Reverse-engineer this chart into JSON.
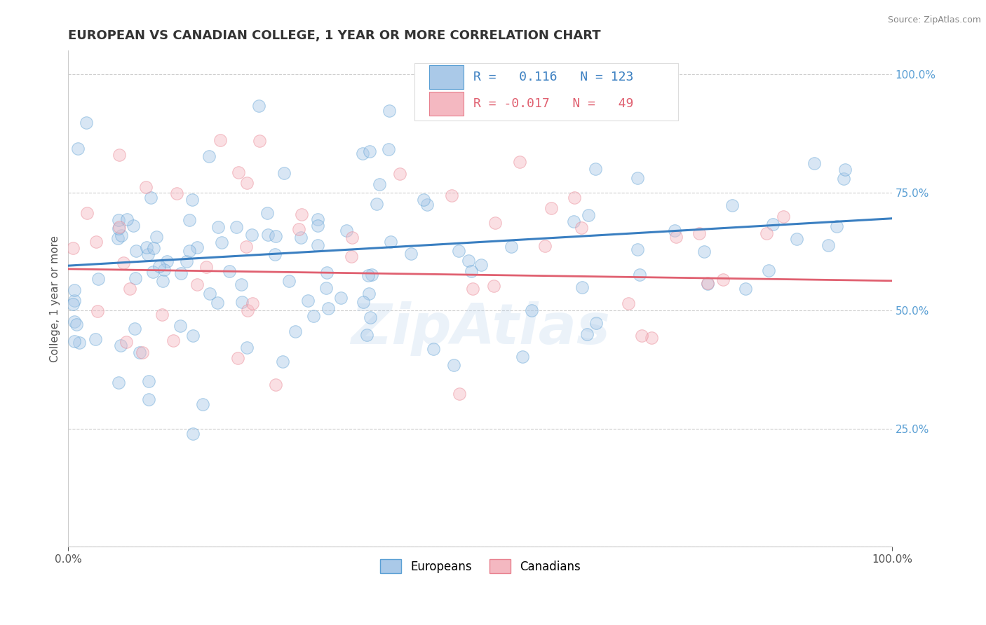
{
  "title": "EUROPEAN VS CANADIAN COLLEGE, 1 YEAR OR MORE CORRELATION CHART",
  "source_text": "Source: ZipAtlas.com",
  "ylabel": "College, 1 year or more",
  "xlim": [
    0.0,
    1.0
  ],
  "ylim": [
    0.0,
    1.05
  ],
  "background_color": "#ffffff",
  "grid_color": "#cccccc",
  "europeans_color": "#aac9e8",
  "canadians_color": "#f4b8c1",
  "europeans_edge_color": "#5a9fd4",
  "canadians_edge_color": "#e8808e",
  "trend_european_color": "#3a7fc1",
  "trend_canadian_color": "#e06070",
  "R_european": 0.116,
  "N_european": 123,
  "R_canadian": -0.017,
  "N_canadian": 49,
  "watermark": "ZipAtlas",
  "legend_label_european": "Europeans",
  "legend_label_canadian": "Canadians",
  "marker_size": 160,
  "marker_alpha": 0.45,
  "title_fontsize": 13,
  "axis_label_fontsize": 11,
  "tick_fontsize": 11,
  "legend_fontsize": 13,
  "ytick_right_color": "#5a9fd4"
}
